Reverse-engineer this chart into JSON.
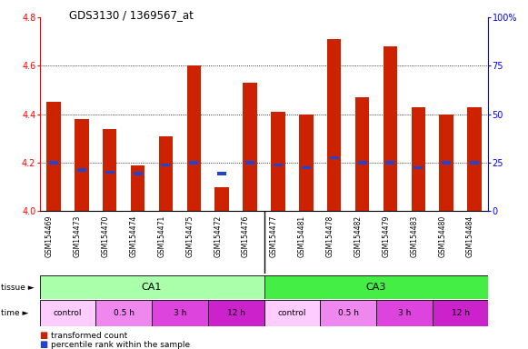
{
  "title": "GDS3130 / 1369567_at",
  "samples": [
    "GSM154469",
    "GSM154473",
    "GSM154470",
    "GSM154474",
    "GSM154471",
    "GSM154475",
    "GSM154472",
    "GSM154476",
    "GSM154477",
    "GSM154481",
    "GSM154478",
    "GSM154482",
    "GSM154479",
    "GSM154483",
    "GSM154480",
    "GSM154484"
  ],
  "red_values": [
    4.45,
    4.38,
    4.34,
    4.19,
    4.31,
    4.6,
    4.1,
    4.53,
    4.41,
    4.4,
    4.71,
    4.47,
    4.68,
    4.43,
    4.4,
    4.43
  ],
  "blue_values": [
    4.2,
    4.17,
    4.16,
    4.155,
    4.19,
    4.2,
    4.155,
    4.2,
    4.19,
    4.18,
    4.22,
    4.2,
    4.2,
    4.18,
    4.2,
    4.2
  ],
  "y_min": 4.0,
  "y_max": 4.8,
  "y_ticks_left": [
    4.0,
    4.2,
    4.4,
    4.6,
    4.8
  ],
  "right_y_labels": [
    "0",
    "25",
    "50",
    "75",
    "100%"
  ],
  "grid_lines": [
    4.2,
    4.4,
    4.6
  ],
  "bar_color": "#cc2200",
  "blue_color": "#2244cc",
  "ca1_color": "#aaffaa",
  "ca3_color": "#44ee44",
  "time_colors": [
    "#ffccff",
    "#ee88ee",
    "#dd44dd",
    "#cc22cc"
  ],
  "time_labels": [
    "control",
    "0.5 h",
    "3 h",
    "12 h"
  ],
  "legend_items": [
    {
      "label": "transformed count",
      "color": "#cc2200"
    },
    {
      "label": "percentile rank within the sample",
      "color": "#2244cc"
    }
  ],
  "bg_color": "#ffffff",
  "plot_bg_color": "#ffffff"
}
